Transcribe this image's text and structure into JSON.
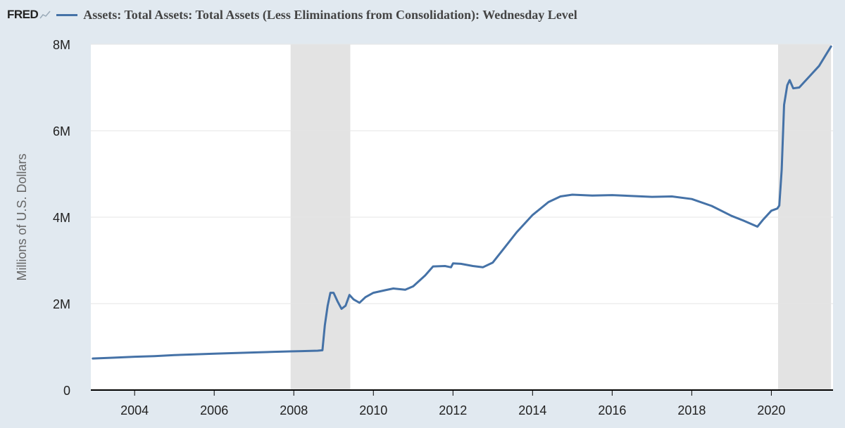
{
  "header": {
    "logo_text": "FRED",
    "title": "Assets: Total Assets: Total Assets (Less Eliminations from Consolidation): Wednesday Level"
  },
  "colors": {
    "line": "#4572a7",
    "recession": "#e3e3e3",
    "background": "#e1e9f0",
    "plot": "#ffffff",
    "grid": "#e6e6e6"
  },
  "chart_data": {
    "type": "line",
    "title": "Assets: Total Assets: Total Assets (Less Eliminations from Consolidation): Wednesday Level",
    "xlabel": "",
    "ylabel": "Millions of U.S. Dollars",
    "xlim": [
      2002.9,
      2021.55
    ],
    "ylim": [
      0,
      8000000
    ],
    "y_ticks": [
      0,
      2000000,
      4000000,
      6000000,
      8000000
    ],
    "y_tick_labels": [
      "0",
      "2M",
      "4M",
      "6M",
      "8M"
    ],
    "x_ticks": [
      2004,
      2006,
      2008,
      2010,
      2012,
      2014,
      2016,
      2018,
      2020
    ],
    "x_tick_labels": [
      "2004",
      "2006",
      "2008",
      "2010",
      "2012",
      "2014",
      "2016",
      "2018",
      "2020"
    ],
    "grid": "horizontal",
    "recessions": [
      [
        2007.92,
        2009.42
      ],
      [
        2020.17,
        2021.5
      ]
    ],
    "series": [
      {
        "values": [
          [
            2002.95,
            730000
          ],
          [
            2003.5,
            750000
          ],
          [
            2004.0,
            770000
          ],
          [
            2004.5,
            785000
          ],
          [
            2005.0,
            810000
          ],
          [
            2005.5,
            825000
          ],
          [
            2006.0,
            840000
          ],
          [
            2006.5,
            855000
          ],
          [
            2007.0,
            870000
          ],
          [
            2007.5,
            885000
          ],
          [
            2007.9,
            895000
          ],
          [
            2008.2,
            900000
          ],
          [
            2008.6,
            910000
          ],
          [
            2008.72,
            920000
          ],
          [
            2008.78,
            1500000
          ],
          [
            2008.85,
            1950000
          ],
          [
            2008.92,
            2250000
          ],
          [
            2009.0,
            2250000
          ],
          [
            2009.1,
            2050000
          ],
          [
            2009.2,
            1880000
          ],
          [
            2009.3,
            1950000
          ],
          [
            2009.4,
            2200000
          ],
          [
            2009.5,
            2100000
          ],
          [
            2009.65,
            2020000
          ],
          [
            2009.8,
            2150000
          ],
          [
            2010.0,
            2250000
          ],
          [
            2010.3,
            2310000
          ],
          [
            2010.5,
            2350000
          ],
          [
            2010.8,
            2320000
          ],
          [
            2011.0,
            2400000
          ],
          [
            2011.3,
            2650000
          ],
          [
            2011.5,
            2860000
          ],
          [
            2011.8,
            2870000
          ],
          [
            2011.95,
            2840000
          ],
          [
            2012.0,
            2930000
          ],
          [
            2012.2,
            2920000
          ],
          [
            2012.5,
            2870000
          ],
          [
            2012.75,
            2840000
          ],
          [
            2013.0,
            2950000
          ],
          [
            2013.3,
            3300000
          ],
          [
            2013.6,
            3650000
          ],
          [
            2014.0,
            4050000
          ],
          [
            2014.4,
            4350000
          ],
          [
            2014.7,
            4480000
          ],
          [
            2015.0,
            4520000
          ],
          [
            2015.5,
            4500000
          ],
          [
            2016.0,
            4510000
          ],
          [
            2016.5,
            4490000
          ],
          [
            2017.0,
            4470000
          ],
          [
            2017.5,
            4480000
          ],
          [
            2018.0,
            4420000
          ],
          [
            2018.5,
            4260000
          ],
          [
            2019.0,
            4030000
          ],
          [
            2019.3,
            3920000
          ],
          [
            2019.65,
            3780000
          ],
          [
            2019.8,
            3950000
          ],
          [
            2020.0,
            4150000
          ],
          [
            2020.15,
            4200000
          ],
          [
            2020.2,
            4270000
          ],
          [
            2020.26,
            5100000
          ],
          [
            2020.32,
            6600000
          ],
          [
            2020.4,
            7050000
          ],
          [
            2020.46,
            7170000
          ],
          [
            2020.55,
            6980000
          ],
          [
            2020.7,
            7000000
          ],
          [
            2021.0,
            7300000
          ],
          [
            2021.2,
            7500000
          ],
          [
            2021.4,
            7800000
          ],
          [
            2021.5,
            7950000
          ]
        ]
      }
    ]
  }
}
